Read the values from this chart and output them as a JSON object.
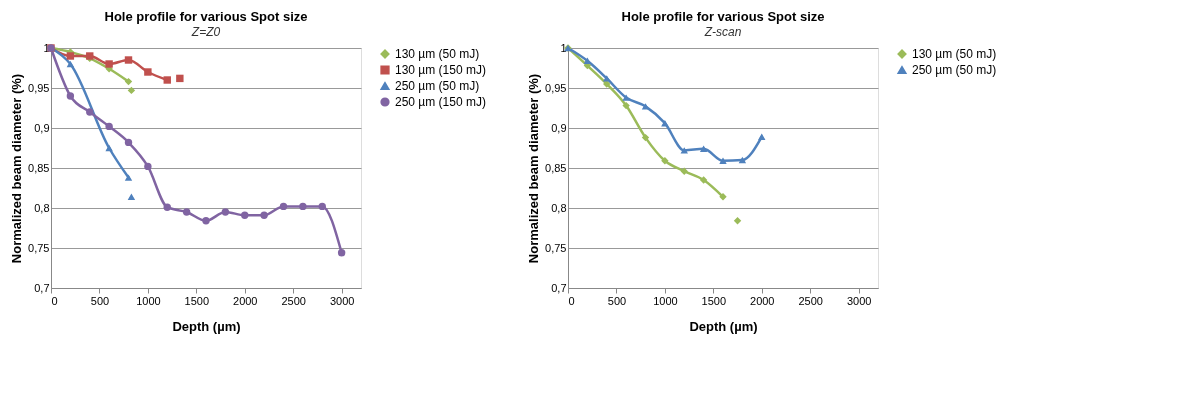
{
  "chart_data": [
    {
      "type": "line",
      "title": "Hole profile for various Spot size",
      "subtitle": "Z=Z0",
      "xlabel": "Depth (µm)",
      "ylabel": "Normalized beam diameter (%)",
      "xlim": [
        0,
        3200
      ],
      "xticks": [
        0,
        500,
        1000,
        1500,
        2000,
        2500,
        3000
      ],
      "ylim": [
        0.7,
        1
      ],
      "yticks": [
        {
          "value": 0.7,
          "label": "0,7"
        },
        {
          "value": 0.75,
          "label": "0,75"
        },
        {
          "value": 0.8,
          "label": "0,8"
        },
        {
          "value": 0.85,
          "label": "0,85"
        },
        {
          "value": 0.9,
          "label": "0,9"
        },
        {
          "value": 0.95,
          "label": "0,95"
        },
        {
          "value": 1,
          "label": "1"
        }
      ],
      "grid": "y",
      "legend": "right",
      "series": [
        {
          "name": "130 µm (50 mJ)",
          "color": "#9bbb59",
          "marker": "diamond",
          "x": [
            0,
            200,
            400,
            600,
            800,
            815,
            830
          ],
          "values": [
            1,
            0.995,
            0.987,
            0.974,
            0.958,
            null,
            0.947
          ]
        },
        {
          "name": "130 µm (150 mJ)",
          "color": "#c0504d",
          "marker": "square",
          "x": [
            0,
            200,
            400,
            600,
            800,
            1000,
            1200,
            1265,
            1330
          ],
          "values": [
            1,
            0.99,
            0.99,
            0.98,
            0.985,
            0.97,
            0.96,
            null,
            0.962
          ]
        },
        {
          "name": "250 µm (50 mJ)",
          "color": "#4f81bd",
          "marker": "triangle",
          "x": [
            0,
            200,
            600,
            800,
            815,
            830
          ],
          "values": [
            1,
            0.98,
            0.875,
            0.838,
            null,
            0.814
          ]
        },
        {
          "name": "250 µm (150 mJ)",
          "color": "#8064a2",
          "marker": "circle",
          "x": [
            0,
            200,
            400,
            600,
            800,
            1000,
            1200,
            1400,
            1600,
            1800,
            2000,
            2200,
            2400,
            2600,
            2800,
            3000
          ],
          "values": [
            1,
            0.94,
            0.92,
            0.902,
            0.882,
            0.852,
            0.801,
            0.795,
            0.784,
            0.795,
            0.791,
            0.791,
            0.802,
            0.802,
            0.802,
            0.744
          ]
        }
      ]
    },
    {
      "type": "line",
      "title": "Hole profile for various Spot size",
      "subtitle": "Z-scan",
      "xlabel": "Depth (µm)",
      "ylabel": "Normalized beam diameter (%)",
      "xlim": [
        0,
        3200
      ],
      "xticks": [
        0,
        500,
        1000,
        1500,
        2000,
        2500,
        3000
      ],
      "ylim": [
        0.7,
        1
      ],
      "yticks": [
        {
          "value": 0.7,
          "label": "0,7"
        },
        {
          "value": 0.75,
          "label": "0,75"
        },
        {
          "value": 0.8,
          "label": "0,8"
        },
        {
          "value": 0.85,
          "label": "0,85"
        },
        {
          "value": 0.9,
          "label": "0,9"
        },
        {
          "value": 0.95,
          "label": "0,95"
        },
        {
          "value": 1,
          "label": "1"
        }
      ],
      "grid": "y",
      "legend": "right",
      "series": [
        {
          "name": "130 µm (50 mJ)",
          "color": "#9bbb59",
          "marker": "diamond",
          "x": [
            0,
            200,
            400,
            600,
            800,
            1000,
            1200,
            1400,
            1600,
            1675,
            1750
          ],
          "values": [
            1,
            0.978,
            0.955,
            0.928,
            0.888,
            0.859,
            0.846,
            0.835,
            0.814,
            null,
            0.784
          ]
        },
        {
          "name": "250 µm (50 mJ)",
          "color": "#4f81bd",
          "marker": "triangle",
          "x": [
            0,
            200,
            400,
            600,
            800,
            1000,
            1200,
            1400,
            1600,
            1800,
            2000
          ],
          "values": [
            1,
            0.984,
            0.962,
            0.938,
            0.927,
            0.906,
            0.872,
            0.874,
            0.859,
            0.86,
            0.889
          ]
        }
      ]
    }
  ]
}
